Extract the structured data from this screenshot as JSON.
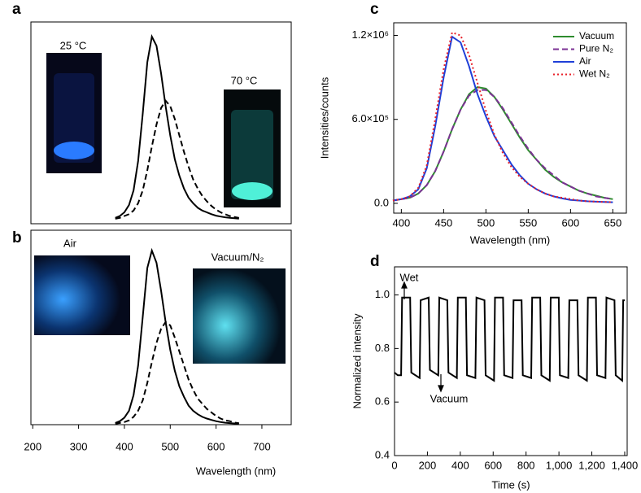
{
  "chart_data": [
    {
      "type": "line",
      "label": "a",
      "annotations": [
        "25 °C",
        "70 °C"
      ],
      "x": [
        380,
        390,
        400,
        410,
        420,
        430,
        440,
        450,
        460,
        470,
        480,
        490,
        500,
        510,
        520,
        530,
        540,
        550,
        560,
        570,
        580,
        590,
        600,
        610,
        620,
        630,
        640,
        650
      ],
      "xlim": [
        196,
        764
      ],
      "ylim": [
        -0.022,
        1.08
      ],
      "series": [
        {
          "color": "#000000",
          "dash": "solid",
          "values": [
            0.01,
            0.02,
            0.04,
            0.08,
            0.16,
            0.32,
            0.58,
            0.86,
            1.0,
            0.95,
            0.8,
            0.62,
            0.46,
            0.33,
            0.24,
            0.17,
            0.12,
            0.09,
            0.065,
            0.05,
            0.04,
            0.03,
            0.022,
            0.017,
            0.013,
            0.01,
            0.008,
            0.006
          ]
        },
        {
          "color": "#000000",
          "dash": "dashed",
          "values": [
            0.005,
            0.01,
            0.02,
            0.03,
            0.05,
            0.09,
            0.16,
            0.27,
            0.4,
            0.52,
            0.61,
            0.65,
            0.62,
            0.55,
            0.46,
            0.37,
            0.29,
            0.22,
            0.17,
            0.13,
            0.1,
            0.075,
            0.055,
            0.04,
            0.03,
            0.02,
            0.015,
            0.01
          ]
        }
      ]
    },
    {
      "type": "line",
      "label": "b",
      "annotations": [
        "Air",
        "Vacuum/N₂"
      ],
      "x_label": "Wavelength (nm)",
      "x": [
        380,
        390,
        400,
        410,
        420,
        430,
        440,
        450,
        460,
        470,
        480,
        490,
        500,
        510,
        520,
        530,
        540,
        550,
        560,
        570,
        580,
        590,
        600,
        610,
        620,
        630,
        640,
        650
      ],
      "xlim": [
        196,
        764
      ],
      "xticks": [
        200,
        300,
        400,
        500,
        600,
        700
      ],
      "ylim": [
        0,
        1.117
      ],
      "series": [
        {
          "color": "#000000",
          "dash": "solid",
          "values": [
            0.01,
            0.02,
            0.04,
            0.08,
            0.17,
            0.34,
            0.62,
            0.9,
            1.0,
            0.93,
            0.77,
            0.59,
            0.43,
            0.31,
            0.22,
            0.16,
            0.11,
            0.08,
            0.06,
            0.045,
            0.035,
            0.027,
            0.02,
            0.015,
            0.011,
            0.009,
            0.007,
            0.005
          ]
        },
        {
          "color": "#000000",
          "dash": "dashed",
          "values": [
            0.005,
            0.01,
            0.015,
            0.025,
            0.045,
            0.08,
            0.14,
            0.24,
            0.36,
            0.47,
            0.55,
            0.59,
            0.57,
            0.5,
            0.42,
            0.34,
            0.26,
            0.2,
            0.15,
            0.12,
            0.09,
            0.07,
            0.05,
            0.035,
            0.025,
            0.02,
            0.012,
            0.008
          ]
        }
      ]
    },
    {
      "type": "line",
      "label": "c",
      "x_label": "Wavelength (nm)",
      "y_label": "Intensities/counts",
      "x": [
        390,
        400,
        410,
        420,
        430,
        440,
        450,
        460,
        470,
        480,
        490,
        500,
        510,
        520,
        530,
        540,
        550,
        560,
        570,
        580,
        590,
        600,
        610,
        620,
        630,
        640,
        650
      ],
      "xlim": [
        391,
        666
      ],
      "xticks": [
        400,
        450,
        500,
        550,
        600,
        650
      ],
      "ylim": [
        -70000,
        1290000
      ],
      "yticks": [
        {
          "value": 0,
          "label": "0.0"
        },
        {
          "value": 600000,
          "label": "6.0×10⁵"
        },
        {
          "value": 1200000,
          "label": "1.2×10⁶"
        }
      ],
      "series": [
        {
          "name": "Vacuum",
          "color": "#2e8b2e",
          "dash": "solid",
          "values": [
            20000,
            30000,
            40000,
            70000,
            130000,
            230000,
            370000,
            530000,
            670000,
            780000,
            830000,
            820000,
            760000,
            670000,
            570000,
            470000,
            380000,
            310000,
            240000,
            190000,
            150000,
            120000,
            90000,
            70000,
            55000,
            40000,
            30000
          ]
        },
        {
          "name": "Pure N₂",
          "color": "#7b3294",
          "dash": "dashed",
          "values": [
            20000,
            30000,
            40000,
            70000,
            130000,
            230000,
            370000,
            530000,
            670000,
            770000,
            810000,
            810000,
            760000,
            680000,
            580000,
            480000,
            390000,
            310000,
            250000,
            200000,
            150000,
            120000,
            90000,
            70000,
            50000,
            40000,
            30000
          ]
        },
        {
          "name": "Air",
          "color": "#1f3fd8",
          "dash": "solid",
          "values": [
            20000,
            30000,
            50000,
            100000,
            250000,
            550000,
            900000,
            1190000,
            1150000,
            980000,
            780000,
            620000,
            480000,
            380000,
            280000,
            200000,
            140000,
            100000,
            70000,
            50000,
            35000,
            25000,
            20000,
            15000,
            12000,
            10000,
            8000
          ]
        },
        {
          "name": "Wet N₂",
          "color": "#e8202a",
          "dash": "dotted",
          "values": [
            20000,
            30000,
            50000,
            110000,
            270000,
            600000,
            960000,
            1220000,
            1200000,
            1060000,
            860000,
            660000,
            490000,
            360000,
            260000,
            190000,
            140000,
            100000,
            70000,
            50000,
            40000,
            30000,
            20000,
            15000,
            12000,
            10000,
            8000
          ]
        }
      ]
    },
    {
      "type": "line",
      "label": "d",
      "annotations": [
        "Wet",
        "Vacuum"
      ],
      "x_label": "Time (s)",
      "y_label": "Normalized intensity",
      "x": [
        0,
        20,
        40,
        46,
        95,
        102,
        153,
        159,
        208,
        215,
        266,
        272,
        321,
        328,
        379,
        385,
        434,
        441,
        492,
        498,
        547,
        554,
        605,
        611,
        660,
        667,
        718,
        724,
        773,
        780,
        831,
        837,
        886,
        893,
        944,
        950,
        999,
        1006,
        1057,
        1063,
        1112,
        1119,
        1170,
        1176,
        1225,
        1232,
        1283,
        1289,
        1338,
        1345,
        1385,
        1391,
        1400
      ],
      "xlim": [
        0,
        1415
      ],
      "xticks": [
        0,
        200,
        400,
        600,
        800,
        {
          "value": 1000,
          "label": "1,000"
        },
        {
          "value": 1200,
          "label": "1,200"
        },
        {
          "value": 1400,
          "label": "1,400"
        }
      ],
      "ylim": [
        0.4,
        1.105
      ],
      "yticks": [
        0.4,
        0.6,
        0.8,
        {
          "value": 1,
          "label": "1.0"
        }
      ],
      "series": [
        {
          "color": "#000000",
          "dash": "solid",
          "values": [
            0.71,
            0.7,
            0.7,
            0.99,
            0.99,
            0.71,
            0.69,
            0.98,
            0.99,
            0.72,
            0.7,
            0.99,
            0.98,
            0.71,
            0.69,
            0.99,
            0.99,
            0.7,
            0.69,
            0.99,
            0.98,
            0.7,
            0.68,
            0.99,
            0.99,
            0.7,
            0.69,
            0.98,
            0.98,
            0.7,
            0.69,
            0.99,
            0.99,
            0.7,
            0.68,
            0.99,
            0.99,
            0.7,
            0.69,
            0.98,
            0.98,
            0.7,
            0.68,
            0.99,
            0.99,
            0.7,
            0.69,
            0.99,
            0.98,
            0.7,
            0.68,
            0.98,
            0.98
          ]
        }
      ]
    }
  ]
}
